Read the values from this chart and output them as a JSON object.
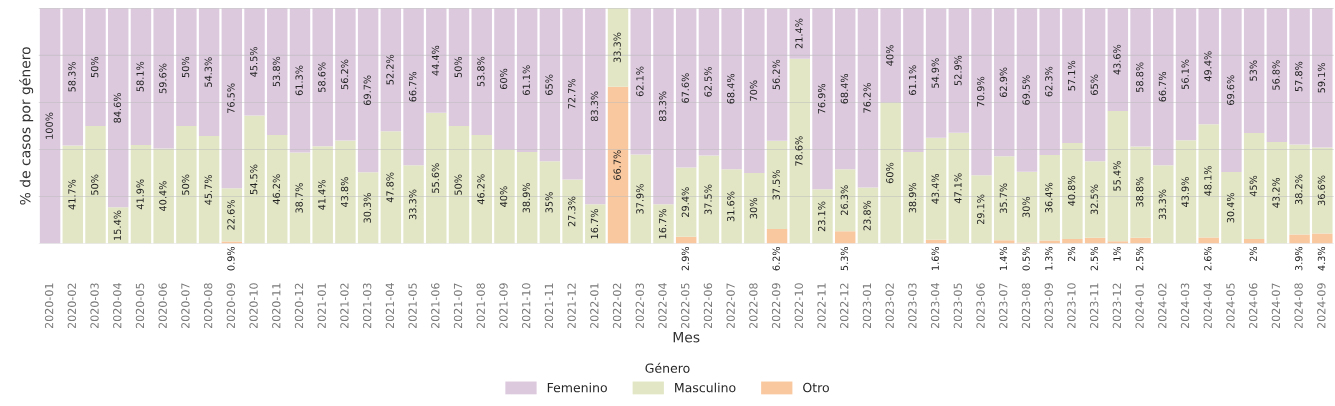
{
  "chart_data": {
    "type": "bar",
    "stacked": true,
    "xlabel": "Mes",
    "ylabel": "% de casos por género",
    "legend_title": "Género",
    "legend": "bottom",
    "grid": "y",
    "tick_labels": "x",
    "categories": [
      "2020-01",
      "2020-02",
      "2020-03",
      "2020-04",
      "2020-05",
      "2020-06",
      "2020-07",
      "2020-08",
      "2020-09",
      "2020-10",
      "2020-11",
      "2020-12",
      "2021-01",
      "2021-02",
      "2021-03",
      "2021-04",
      "2021-05",
      "2021-06",
      "2021-07",
      "2021-08",
      "2021-09",
      "2021-10",
      "2021-11",
      "2021-12",
      "2022-01",
      "2022-02",
      "2022-03",
      "2022-04",
      "2022-05",
      "2022-06",
      "2022-07",
      "2022-08",
      "2022-09",
      "2022-10",
      "2022-11",
      "2022-12",
      "2023-01",
      "2023-02",
      "2023-03",
      "2023-04",
      "2023-05",
      "2023-06",
      "2023-07",
      "2023-08",
      "2023-09",
      "2023-10",
      "2023-11",
      "2023-12",
      "2024-01",
      "2024-02",
      "2024-03",
      "2024-04",
      "2024-05",
      "2024-06",
      "2024-07",
      "2024-08",
      "2024-09"
    ],
    "series": [
      {
        "name": "Otro",
        "color": "#f9c89e",
        "values": [
          null,
          null,
          null,
          null,
          null,
          null,
          null,
          null,
          0.9,
          null,
          null,
          null,
          null,
          null,
          null,
          null,
          null,
          null,
          null,
          null,
          null,
          null,
          null,
          null,
          null,
          66.7,
          null,
          null,
          2.9,
          null,
          null,
          null,
          6.2,
          null,
          null,
          5.3,
          null,
          null,
          null,
          1.6,
          null,
          null,
          1.4,
          0.5,
          1.3,
          2,
          2.5,
          1,
          2.5,
          null,
          null,
          2.6,
          null,
          2,
          null,
          3.9,
          4.3
        ],
        "value_labels": [
          null,
          null,
          null,
          null,
          null,
          null,
          null,
          null,
          "0.9%",
          null,
          null,
          null,
          null,
          null,
          null,
          null,
          null,
          null,
          null,
          null,
          null,
          null,
          null,
          null,
          null,
          "66.7%",
          null,
          null,
          "2.9%",
          null,
          null,
          null,
          "6.2%",
          null,
          null,
          "5.3%",
          null,
          null,
          null,
          "1.6%",
          null,
          null,
          "1.4%",
          "0.5%",
          "1.3%",
          "2%",
          "2.5%",
          "1%",
          "2.5%",
          null,
          null,
          "2.6%",
          null,
          "2%",
          null,
          "3.9%",
          "4.3%"
        ]
      },
      {
        "name": "Masculino",
        "color": "#e2e6c5",
        "values": [
          null,
          41.7,
          50,
          15.4,
          41.9,
          40.4,
          50,
          45.7,
          22.6,
          54.5,
          46.2,
          38.7,
          41.4,
          43.8,
          30.3,
          47.8,
          33.3,
          55.6,
          50,
          46.2,
          40,
          38.9,
          35,
          27.3,
          16.7,
          33.3,
          37.9,
          16.7,
          29.4,
          37.5,
          31.6,
          30,
          37.5,
          78.6,
          23.1,
          26.3,
          23.8,
          60,
          38.9,
          43.4,
          47.1,
          29.1,
          35.7,
          30,
          36.4,
          40.8,
          32.5,
          55.4,
          38.8,
          33.3,
          43.9,
          48.1,
          30.4,
          45,
          43.2,
          38.2,
          36.6
        ],
        "value_labels": [
          null,
          "41.7%",
          "50%",
          "15.4%",
          "41.9%",
          "40.4%",
          "50%",
          "45.7%",
          "22.6%",
          "54.5%",
          "46.2%",
          "38.7%",
          "41.4%",
          "43.8%",
          "30.3%",
          "47.8%",
          "33.3%",
          "55.6%",
          "50%",
          "46.2%",
          "40%",
          "38.9%",
          "35%",
          "27.3%",
          "16.7%",
          "33.3%",
          "37.9%",
          "16.7%",
          "29.4%",
          "37.5%",
          "31.6%",
          "30%",
          "37.5%",
          "78.6%",
          "23.1%",
          "26.3%",
          "23.8%",
          "60%",
          "38.9%",
          "43.4%",
          "47.1%",
          "29.1%",
          "35.7%",
          "30%",
          "36.4%",
          "40.8%",
          "32.5%",
          "55.4%",
          "38.8%",
          "33.3%",
          "43.9%",
          "48.1%",
          "30.4%",
          "45%",
          "43.2%",
          "38.2%",
          "36.6%"
        ]
      },
      {
        "name": "Femenino",
        "color": "#dcc9de",
        "values": [
          100,
          58.3,
          50,
          84.6,
          58.1,
          59.6,
          50,
          54.3,
          76.5,
          45.5,
          53.8,
          61.3,
          58.6,
          56.2,
          69.7,
          52.2,
          66.7,
          44.4,
          50,
          53.8,
          60,
          61.1,
          65,
          72.7,
          83.3,
          null,
          62.1,
          83.3,
          67.6,
          62.5,
          68.4,
          70,
          56.2,
          21.4,
          76.9,
          68.4,
          76.2,
          40,
          61.1,
          54.9,
          52.9,
          70.9,
          62.9,
          69.5,
          62.3,
          57.1,
          65,
          43.6,
          58.8,
          66.7,
          56.1,
          49.4,
          69.6,
          53,
          56.8,
          57.8,
          59.1
        ],
        "value_labels": [
          "100%",
          "58.3%",
          "50%",
          "84.6%",
          "58.1%",
          "59.6%",
          "50%",
          "54.3%",
          "76.5%",
          "45.5%",
          "53.8%",
          "61.3%",
          "58.6%",
          "56.2%",
          "69.7%",
          "52.2%",
          "66.7%",
          "44.4%",
          "50%",
          "53.8%",
          "60%",
          "61.1%",
          "65%",
          "72.7%",
          "83.3%",
          null,
          "62.1%",
          "83.3%",
          "67.6%",
          "62.5%",
          "68.4%",
          "70%",
          "56.2%",
          "21.4%",
          "76.9%",
          "68.4%",
          "76.2%",
          "40%",
          "61.1%",
          "54.9%",
          "52.9%",
          "70.9%",
          "62.9%",
          "69.5%",
          "62.3%",
          "57.1%",
          "65%",
          "43.6%",
          "58.8%",
          "66.7%",
          "56.1%",
          "49.4%",
          "69.6%",
          "53%",
          "56.8%",
          "57.8%",
          "59.1%"
        ]
      }
    ]
  }
}
